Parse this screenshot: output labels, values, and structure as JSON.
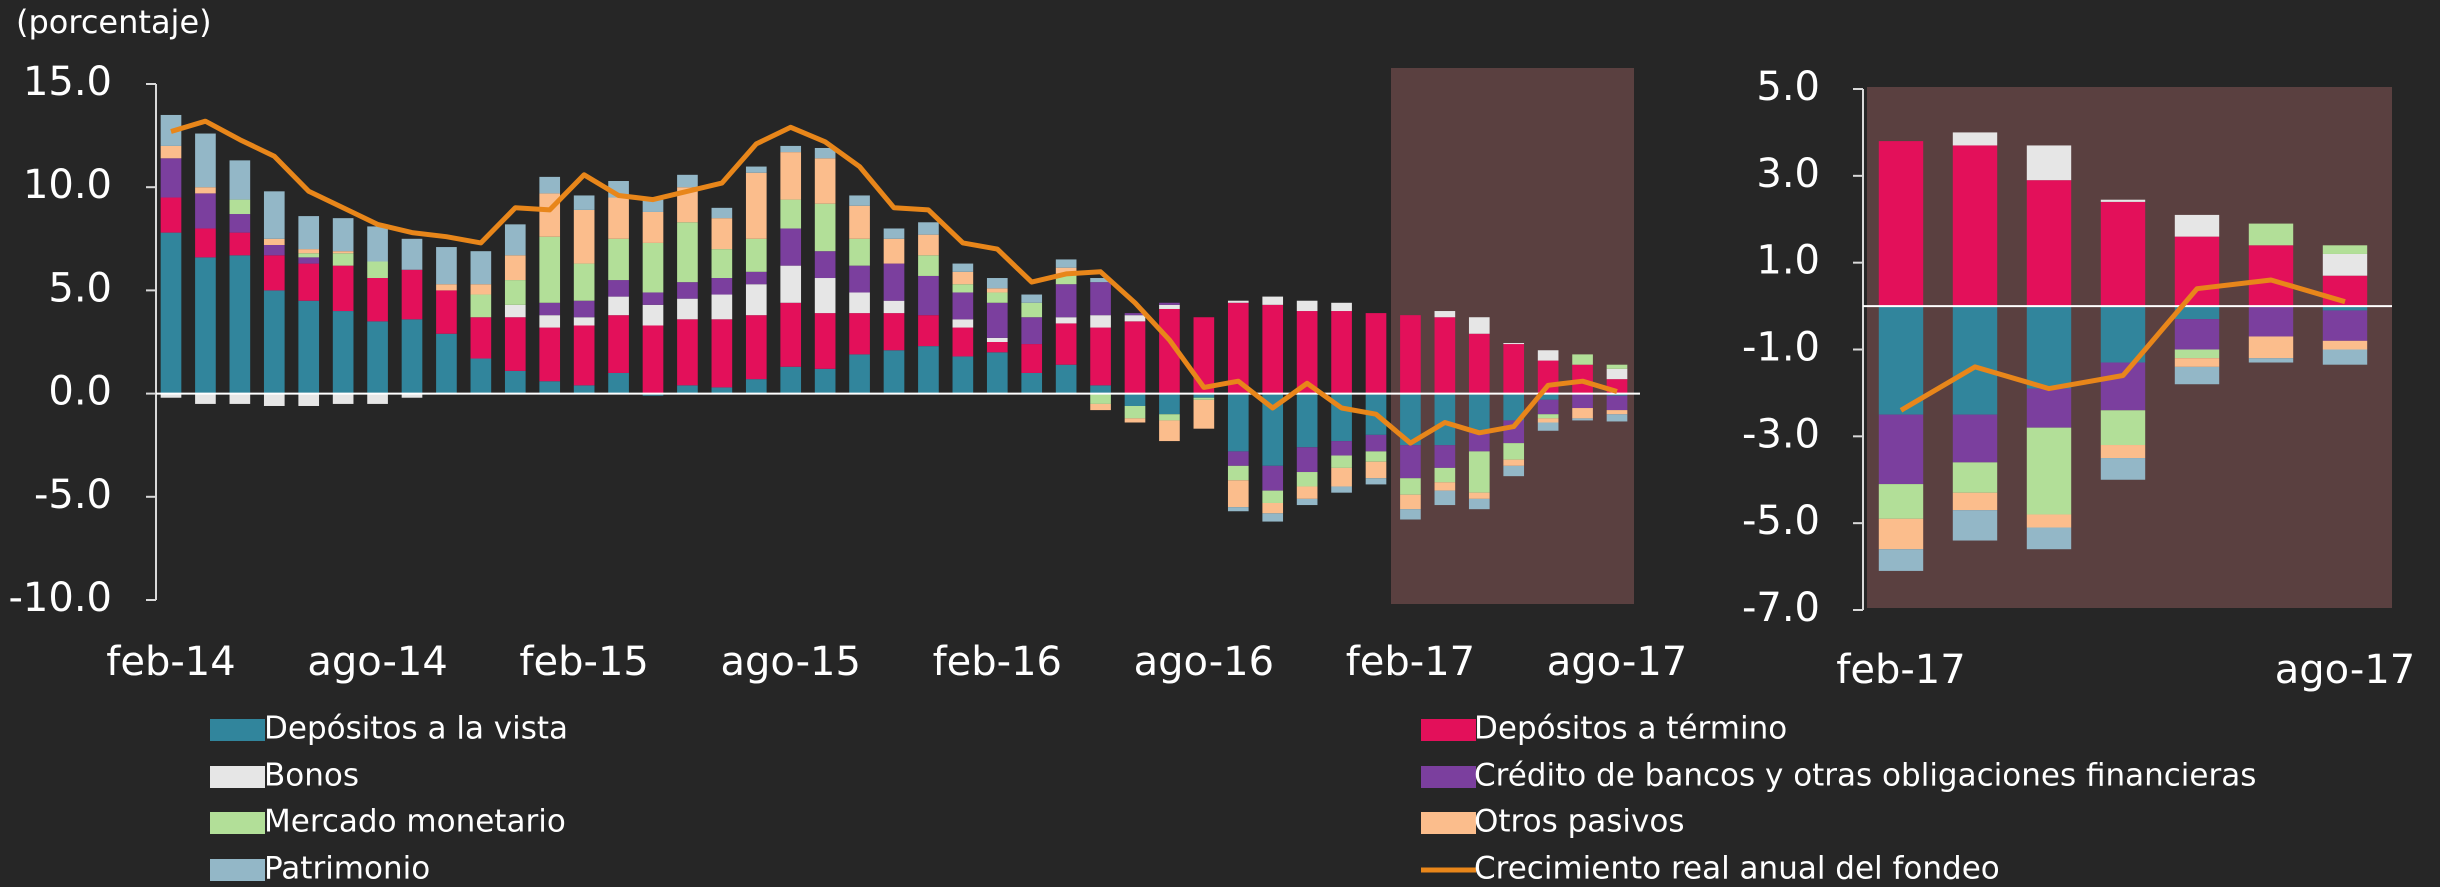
{
  "chart_data": [
    {
      "type": "bar",
      "stacked": true,
      "y_label": "(porcentaje)",
      "categories": [
        "feb-14",
        null,
        null,
        null,
        null,
        null,
        "ago-14",
        null,
        null,
        null,
        null,
        null,
        "feb-15",
        null,
        null,
        null,
        null,
        null,
        "ago-15",
        null,
        null,
        null,
        null,
        null,
        "feb-16",
        null,
        null,
        null,
        null,
        null,
        "ago-16",
        null,
        null,
        null,
        null,
        null,
        "feb-17",
        null,
        null,
        null,
        null,
        null,
        "ago-17"
      ],
      "ylim": [
        -10,
        15
      ],
      "yticks": [
        {
          "value": 15,
          "label": "15.0"
        },
        {
          "value": 10,
          "label": "10.0"
        },
        {
          "value": 5,
          "label": "5.0"
        },
        {
          "value": 0,
          "label": "0.0"
        },
        {
          "value": -5,
          "label": "-5.0"
        },
        {
          "value": -10,
          "label": "-10.0"
        }
      ],
      "series": [
        {
          "name": "Depósitos a la vista",
          "color": "#31859c",
          "values": [
            7.8,
            6.6,
            6.7,
            5.0,
            4.5,
            4.0,
            3.5,
            3.6,
            2.9,
            1.7,
            1.1,
            0.6,
            0.4,
            1.0,
            -0.1,
            0.4,
            0.3,
            0.7,
            1.3,
            1.2,
            1.9,
            2.1,
            2.3,
            1.8,
            2.0,
            1.0,
            1.4,
            0.4,
            -0.6,
            -1.0,
            -0.2,
            -2.8,
            -3.5,
            -2.6,
            -2.3,
            -2.0,
            -2.5,
            -2.5,
            -1.9,
            -1.3,
            -0.3,
            0.0,
            -0.1
          ]
        },
        {
          "name": "Depósitos a término",
          "color": "#e3105a",
          "values": [
            1.7,
            1.4,
            1.1,
            1.7,
            1.8,
            2.2,
            2.1,
            2.4,
            2.1,
            2.0,
            2.6,
            2.6,
            2.9,
            2.8,
            3.3,
            3.2,
            3.3,
            3.1,
            3.1,
            2.7,
            2.0,
            1.8,
            1.5,
            1.4,
            0.5,
            1.4,
            2.0,
            2.8,
            3.5,
            4.1,
            3.7,
            4.4,
            4.3,
            4.0,
            4.0,
            3.9,
            3.8,
            3.7,
            2.9,
            2.4,
            1.6,
            1.4,
            0.7
          ]
        },
        {
          "name": "Bonos",
          "color": "#e6e6e6",
          "values": [
            -0.2,
            -0.5,
            -0.5,
            -0.6,
            -0.6,
            -0.5,
            -0.5,
            -0.2,
            0,
            0,
            0.6,
            0.6,
            0.4,
            0.9,
            1.0,
            1.0,
            1.2,
            1.5,
            1.8,
            1.7,
            1.0,
            0.6,
            0,
            0.4,
            0.2,
            0,
            0.3,
            0.6,
            0.3,
            0.2,
            0,
            0.1,
            0.4,
            0.5,
            0.4,
            0,
            0,
            0.3,
            0.8,
            0.05,
            0.5,
            0,
            0.5
          ]
        },
        {
          "name": "Crédito de bancos y otras obligaciones financieras",
          "color": "#7b3f9e",
          "values": [
            1.9,
            1.7,
            0.9,
            0.5,
            0.3,
            0,
            0,
            0,
            0,
            0,
            0,
            0.6,
            0.8,
            0.8,
            0.6,
            0.8,
            0.8,
            0.6,
            1.8,
            1.3,
            1.3,
            1.8,
            1.9,
            1.3,
            1.7,
            1.3,
            1.6,
            1.6,
            0.1,
            0.1,
            0,
            -0.7,
            -1.2,
            -1.2,
            -0.7,
            -0.8,
            -1.6,
            -1.1,
            -0.9,
            -1.1,
            -0.7,
            -0.7,
            -0.7
          ]
        },
        {
          "name": "Mercado monetario",
          "color": "#b2df98",
          "values": [
            0,
            0,
            0.7,
            0,
            0.2,
            0.6,
            0.8,
            0,
            0,
            1.1,
            1.2,
            3.2,
            1.8,
            2.0,
            2.4,
            2.9,
            1.4,
            1.6,
            1.4,
            2.3,
            1.3,
            0,
            1.0,
            0.4,
            0.5,
            0.7,
            0.5,
            -0.5,
            -0.6,
            -0.3,
            -0.1,
            -0.7,
            -0.6,
            -0.7,
            -0.6,
            -0.5,
            -0.8,
            -0.7,
            -2.0,
            -0.8,
            -0.2,
            0.5,
            0.2
          ]
        },
        {
          "name": "Otros pasivos",
          "color": "#fbbd8c",
          "values": [
            0.6,
            0.3,
            0,
            0.3,
            0.2,
            0.1,
            0,
            0,
            0.3,
            0.5,
            1.2,
            2.1,
            2.6,
            2.0,
            1.5,
            1.7,
            1.5,
            3.2,
            2.3,
            2.2,
            1.6,
            1.2,
            1.0,
            0.6,
            0.2,
            0,
            0.3,
            -0.3,
            -0.2,
            -1.0,
            -1.4,
            -1.3,
            -0.5,
            -0.6,
            -0.9,
            -0.8,
            -0.7,
            -0.4,
            -0.3,
            -0.3,
            -0.2,
            -0.5,
            -0.2
          ]
        },
        {
          "name": "Patrimonio",
          "color": "#93b7c7",
          "values": [
            1.5,
            2.6,
            1.9,
            2.3,
            1.6,
            1.6,
            1.7,
            1.5,
            1.8,
            1.6,
            1.5,
            0.8,
            0.7,
            0.8,
            0.6,
            0.6,
            0.5,
            0.3,
            0.3,
            0.5,
            0.5,
            0.5,
            0.6,
            0.4,
            0.5,
            0.4,
            0.4,
            0.2,
            0,
            0,
            0,
            -0.2,
            -0.4,
            -0.3,
            -0.3,
            -0.3,
            -0.5,
            -0.7,
            -0.5,
            -0.5,
            -0.4,
            -0.1,
            -0.35
          ]
        },
        {
          "name": "Crecimiento real anual del fondeo",
          "type": "line",
          "color": "#e8861a",
          "values": [
            12.7,
            13.2,
            12.3,
            11.5,
            9.8,
            9.0,
            8.2,
            7.8,
            7.6,
            7.3,
            9.0,
            8.9,
            10.6,
            9.6,
            9.4,
            9.8,
            10.2,
            12.1,
            12.9,
            12.2,
            11.0,
            9.0,
            8.9,
            7.3,
            7.0,
            5.4,
            5.8,
            5.9,
            4.4,
            2.6,
            0.3,
            0.6,
            -0.7,
            0.5,
            -0.7,
            -1.0,
            -2.4,
            -1.4,
            -1.9,
            -1.6,
            0.4,
            0.6,
            0.1
          ]
        }
      ]
    },
    {
      "type": "bar",
      "stacked": true,
      "categories": [
        "feb-17",
        null,
        null,
        null,
        null,
        null,
        "ago-17"
      ],
      "ylim": [
        -7,
        5
      ],
      "yticks": [
        {
          "value": 5,
          "label": "5.0"
        },
        {
          "value": 3,
          "label": "3.0"
        },
        {
          "value": 1,
          "label": "1.0"
        },
        {
          "value": -1,
          "label": "-1.0"
        },
        {
          "value": -3,
          "label": "-3.0"
        },
        {
          "value": -5,
          "label": "-5.0"
        },
        {
          "value": -7,
          "label": "-7.0"
        }
      ],
      "series": [
        {
          "color": "#31859c",
          "values": [
            -2.5,
            -2.5,
            -1.9,
            -1.3,
            -0.3,
            0.0,
            -0.1
          ]
        },
        {
          "color": "#e3105a",
          "values": [
            3.8,
            3.7,
            2.9,
            2.4,
            1.6,
            1.4,
            0.7
          ]
        },
        {
          "color": "#e6e6e6",
          "values": [
            0,
            0.3,
            0.8,
            0.05,
            0.5,
            0,
            0.5
          ]
        },
        {
          "color": "#7b3f9e",
          "values": [
            -1.6,
            -1.1,
            -0.9,
            -1.1,
            -0.7,
            -0.7,
            -0.7
          ]
        },
        {
          "color": "#b2df98",
          "values": [
            -0.8,
            -0.7,
            -2.0,
            -0.8,
            -0.2,
            0.5,
            0.2
          ]
        },
        {
          "color": "#fbbd8c",
          "values": [
            -0.7,
            -0.4,
            -0.3,
            -0.3,
            -0.2,
            -0.5,
            -0.2
          ]
        },
        {
          "color": "#93b7c7",
          "values": [
            -0.5,
            -0.7,
            -0.5,
            -0.5,
            -0.4,
            -0.1,
            -0.35
          ]
        },
        {
          "type": "line",
          "color": "#e8861a",
          "values": [
            -2.4,
            -1.4,
            -1.9,
            -1.6,
            0.4,
            0.6,
            0.1
          ]
        }
      ]
    }
  ]
}
